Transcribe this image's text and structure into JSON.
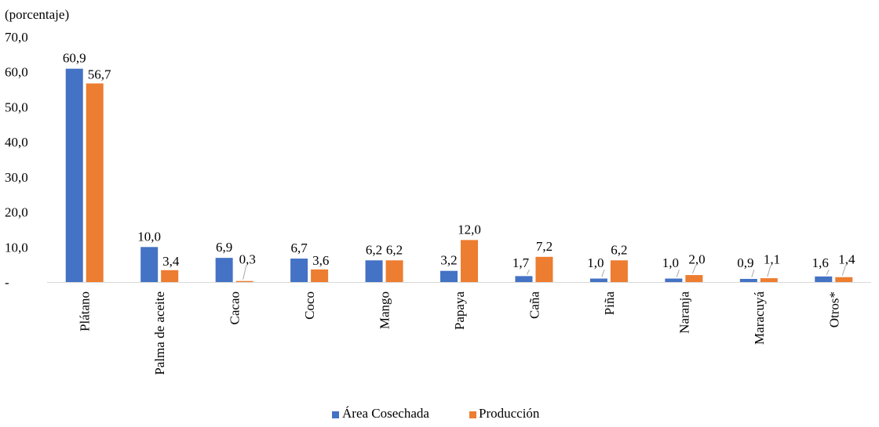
{
  "chart_data": {
    "type": "bar",
    "unit_label": "(porcentaje)",
    "title": "",
    "xlabel": "",
    "ylabel": "",
    "ylim": [
      0,
      70
    ],
    "yticks": [
      0,
      10,
      20,
      30,
      40,
      50,
      60,
      70
    ],
    "ytick_labels": [
      "-",
      "10,0",
      "20,0",
      "30,0",
      "40,0",
      "50,0",
      "60,0",
      "70,0"
    ],
    "grid": false,
    "legend_position": "bottom",
    "categories": [
      "Plátano",
      "Palma de aceite",
      "Cacao",
      "Coco",
      "Mango",
      "Papaya",
      "Caña",
      "Piña",
      "Naranja",
      "Maracuyá",
      "Otros*"
    ],
    "series": [
      {
        "name": "Área Cosechada",
        "color": "#4472C4",
        "values": [
          60.9,
          10.0,
          6.9,
          6.7,
          6.2,
          3.2,
          1.7,
          1.0,
          1.0,
          0.9,
          1.6
        ],
        "labels": [
          "60,9",
          "10,0",
          "6,9",
          "6,7",
          "6,2",
          "3,2",
          "1,7",
          "1,0",
          "1,0",
          "0,9",
          "1,6"
        ]
      },
      {
        "name": "Producción",
        "color": "#ED7D31",
        "values": [
          56.7,
          3.4,
          0.3,
          3.6,
          6.2,
          12.0,
          7.2,
          6.2,
          2.0,
          1.1,
          1.4
        ],
        "labels": [
          "56,7",
          "3,4",
          "0,3",
          "3,6",
          "6,2",
          "12,0",
          "7,2",
          "6,2",
          "2,0",
          "1,1",
          "1,4"
        ]
      }
    ]
  }
}
